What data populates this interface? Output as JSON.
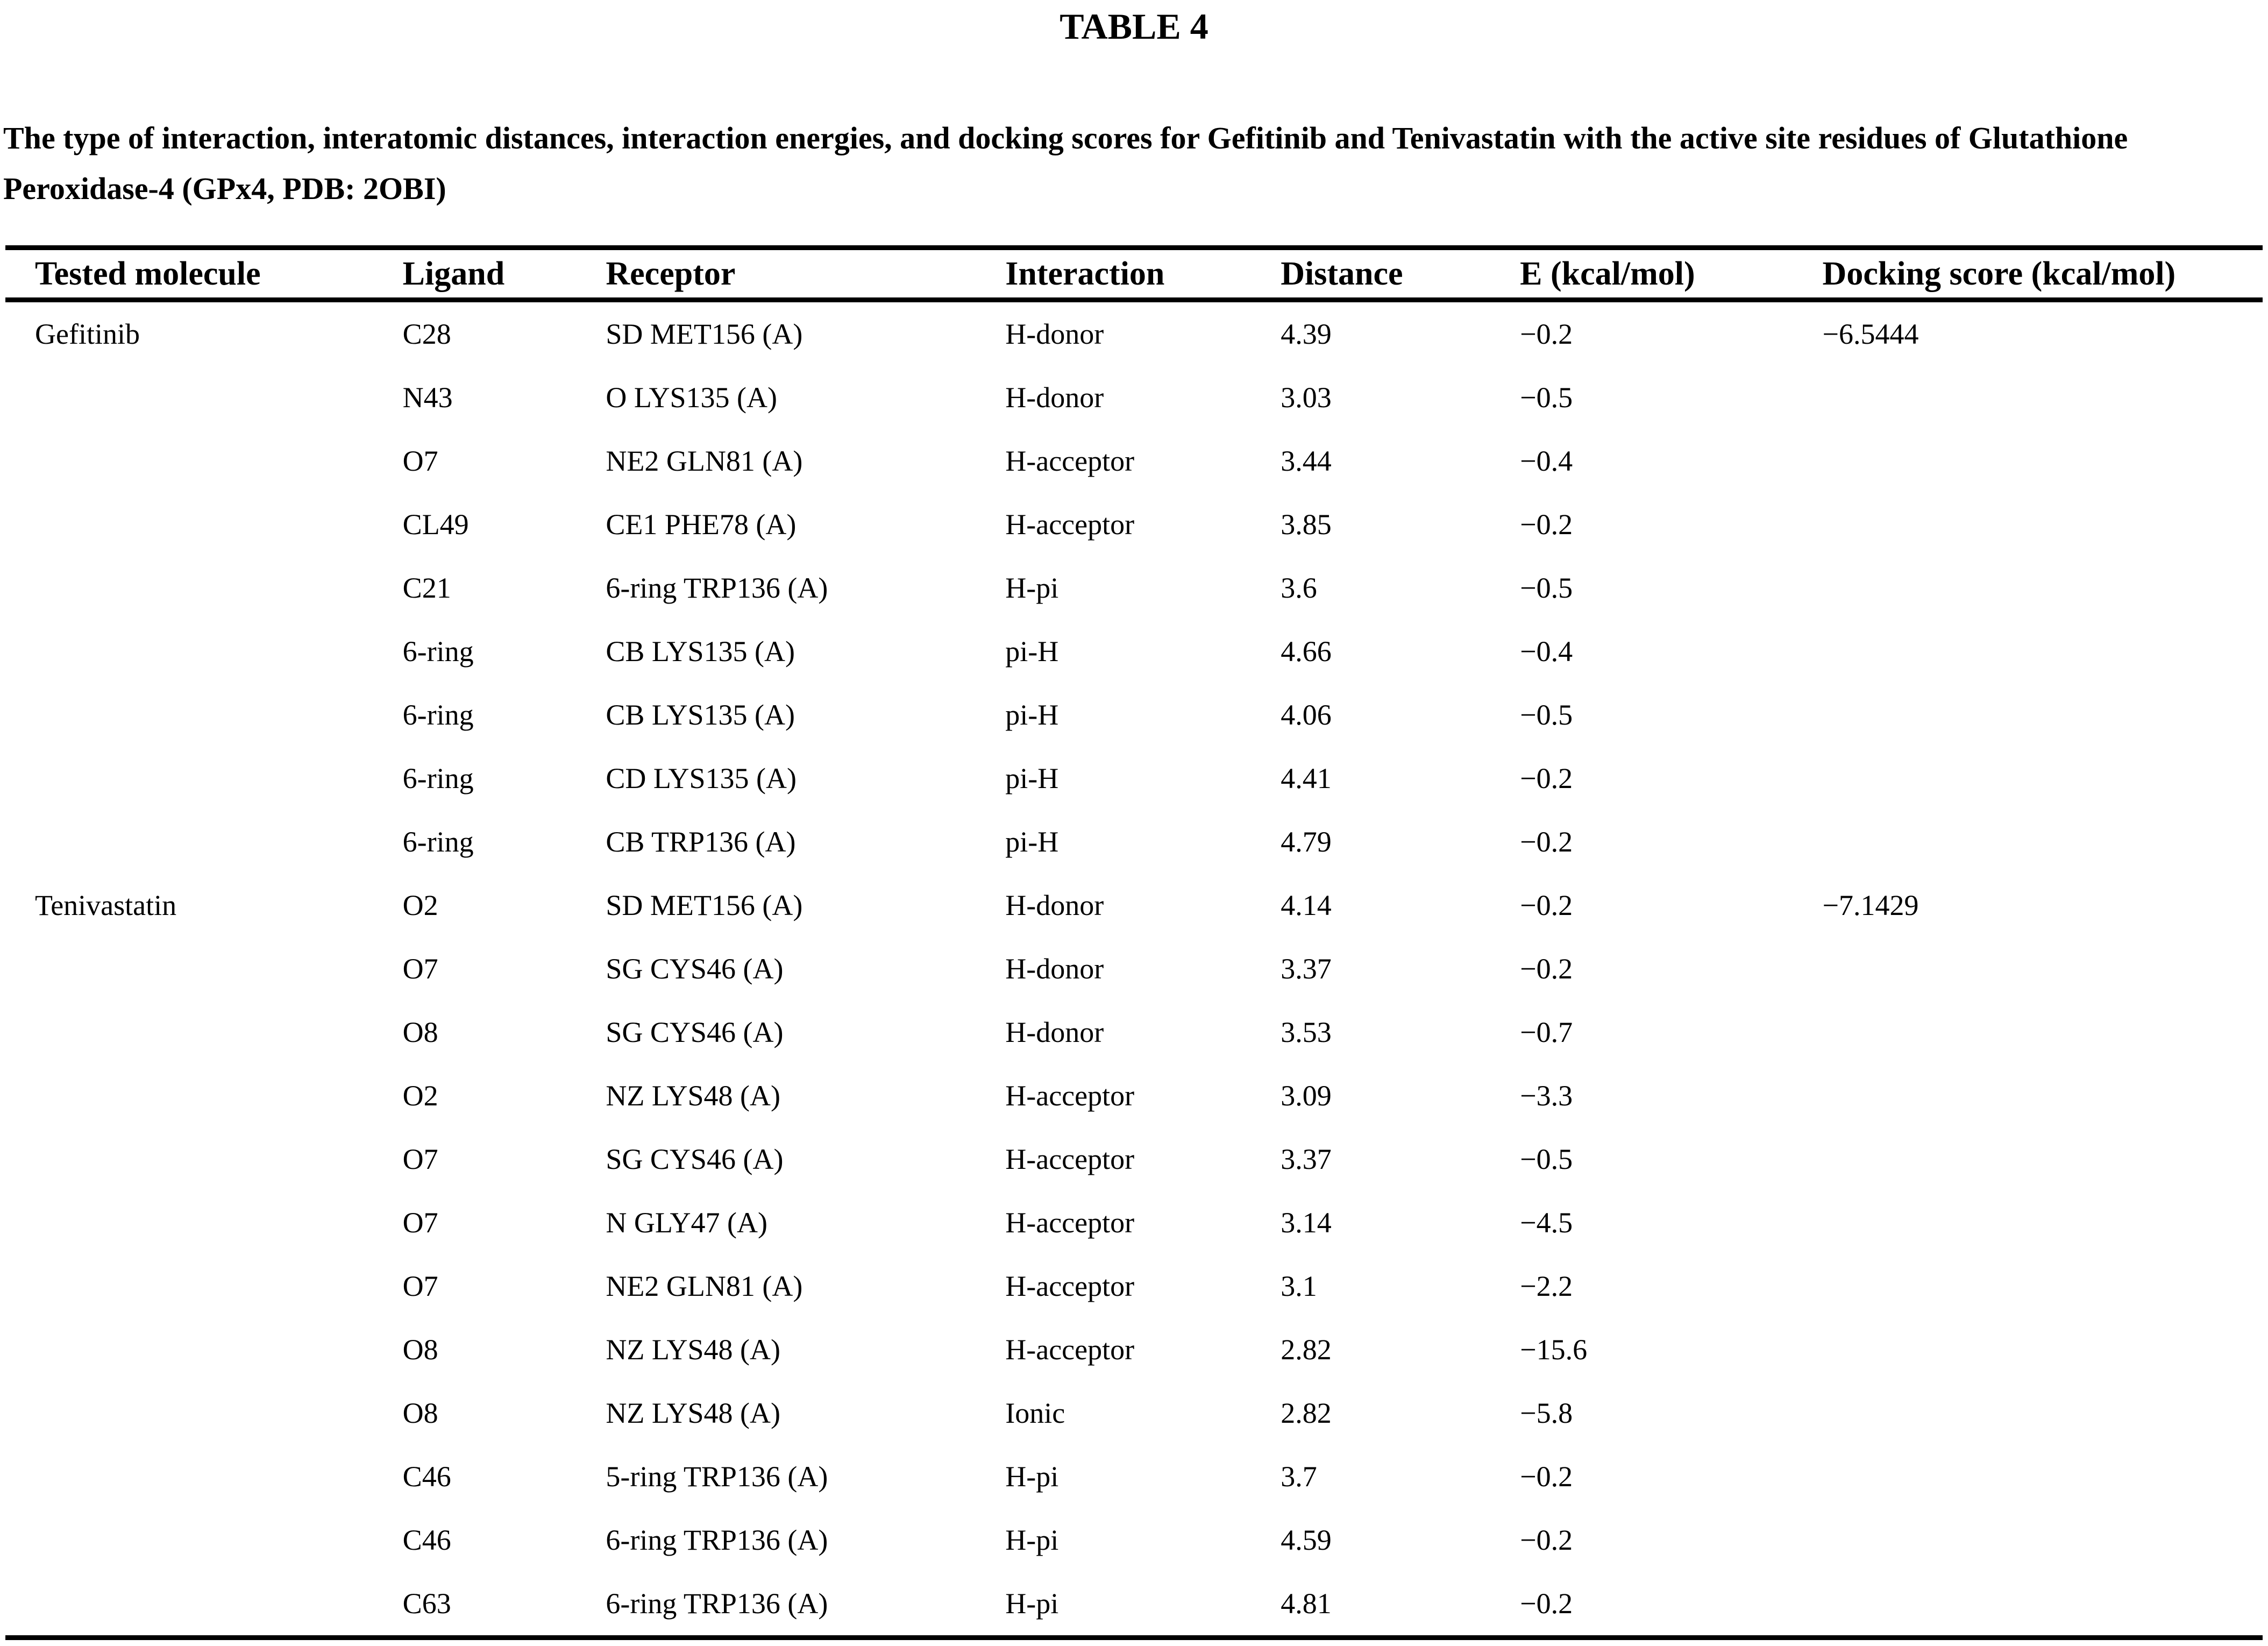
{
  "page": {
    "title": "TABLE 4",
    "caption": "The type of interaction, interatomic distances, interaction energies, and docking scores for Gefitinib and Tenivastatin with the active site residues of Glutathione Peroxidase-4 (GPx4, PDB: 2OBI)"
  },
  "colors": {
    "text": "#000000",
    "background": "#ffffff",
    "rule": "#000000"
  },
  "table": {
    "columns": [
      "Tested molecule",
      "Ligand",
      "Receptor",
      "Interaction",
      "Distance",
      "E (kcal/mol)",
      "Docking score (kcal/mol)"
    ],
    "groups": [
      {
        "molecule": "Gefitinib",
        "docking_score": "−6.5444",
        "row_count": 9
      },
      {
        "molecule": "Tenivastatin",
        "docking_score": "−7.1429",
        "row_count": 12
      }
    ],
    "rows": [
      [
        "Gefitinib",
        "C28",
        "SD MET156 (A)",
        "H-donor",
        "4.39",
        "−0.2",
        "−6.5444"
      ],
      [
        "",
        "N43",
        "O LYS135 (A)",
        "H-donor",
        "3.03",
        "−0.5",
        ""
      ],
      [
        "",
        "O7",
        "NE2 GLN81 (A)",
        "H-acceptor",
        "3.44",
        "−0.4",
        ""
      ],
      [
        "",
        "CL49",
        "CE1 PHE78 (A)",
        "H-acceptor",
        "3.85",
        "−0.2",
        ""
      ],
      [
        "",
        "C21",
        "6-ring TRP136 (A)",
        "H-pi",
        "3.6",
        "−0.5",
        ""
      ],
      [
        "",
        "6-ring",
        "CB LYS135 (A)",
        "pi-H",
        "4.66",
        "−0.4",
        ""
      ],
      [
        "",
        "6-ring",
        "CB LYS135 (A)",
        "pi-H",
        "4.06",
        "−0.5",
        ""
      ],
      [
        "",
        "6-ring",
        "CD LYS135 (A)",
        "pi-H",
        "4.41",
        "−0.2",
        ""
      ],
      [
        "",
        "6-ring",
        "CB TRP136 (A)",
        "pi-H",
        "4.79",
        "−0.2",
        ""
      ],
      [
        "Tenivastatin",
        "O2",
        "SD MET156 (A)",
        "H-donor",
        "4.14",
        "−0.2",
        "−7.1429"
      ],
      [
        "",
        "O7",
        "SG CYS46 (A)",
        "H-donor",
        "3.37",
        "−0.2",
        ""
      ],
      [
        "",
        "O8",
        "SG CYS46 (A)",
        "H-donor",
        "3.53",
        "−0.7",
        ""
      ],
      [
        "",
        "O2",
        "NZ LYS48 (A)",
        "H-acceptor",
        "3.09",
        "−3.3",
        ""
      ],
      [
        "",
        "O7",
        "SG CYS46 (A)",
        "H-acceptor",
        "3.37",
        "−0.5",
        ""
      ],
      [
        "",
        "O7",
        "N GLY47 (A)",
        "H-acceptor",
        "3.14",
        "−4.5",
        ""
      ],
      [
        "",
        "O7",
        "NE2 GLN81 (A)",
        "H-acceptor",
        "3.1",
        "−2.2",
        ""
      ],
      [
        "",
        "O8",
        "NZ LYS48 (A)",
        "H-acceptor",
        "2.82",
        "−15.6",
        ""
      ],
      [
        "",
        "O8",
        "NZ LYS48 (A)",
        "Ionic",
        "2.82",
        "−5.8",
        ""
      ],
      [
        "",
        "C46",
        "5-ring TRP136 (A)",
        "H-pi",
        "3.7",
        "−0.2",
        ""
      ],
      [
        "",
        "C46",
        "6-ring TRP136 (A)",
        "H-pi",
        "4.59",
        "−0.2",
        ""
      ],
      [
        "",
        "C63",
        "6-ring TRP136 (A)",
        "H-pi",
        "4.81",
        "−0.2",
        ""
      ]
    ]
  }
}
